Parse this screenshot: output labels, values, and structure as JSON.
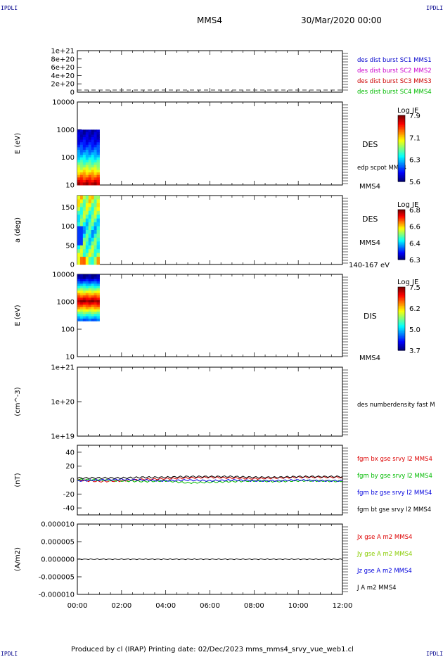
{
  "header": {
    "corner_left": "IPDLI",
    "corner_right": "IPDLI",
    "spacecraft": "MMS4",
    "date": "30/Mar/2020 00:00"
  },
  "footer": {
    "text": "Produced by cl (IRAP)   Printing date: 02/Dec/2023   mms_mms4_srvy_vue_web1.cl",
    "corner_left": "IPDLI",
    "corner_right": "IPDLI"
  },
  "chart_data": [
    {
      "type": "line",
      "panel": 1,
      "yticks": [
        "1e+21",
        "8e+20",
        "6e+20",
        "4e+20",
        "2e+20",
        "0"
      ],
      "ylim": [
        0,
        1e+21
      ],
      "legend": [
        {
          "label": "des dist burst SC1 MMS1",
          "color": "#0000cc"
        },
        {
          "label": "des dist burst SC2 MMS2",
          "color": "#cc00cc"
        },
        {
          "label": "des dist burst SC3 MMS3",
          "color": "#cc0000"
        },
        {
          "label": "des dist burst SC4 MMS4",
          "color": "#00bb00"
        }
      ]
    },
    {
      "type": "heatmap",
      "panel": 2,
      "ylabel": "E (eV)",
      "yticks": [
        "10000",
        "1000",
        "100",
        "10"
      ],
      "ylog": true,
      "ylim": [
        10,
        10000
      ],
      "x_range": [
        "00:00",
        "01:00"
      ],
      "y_range": [
        10,
        1000
      ],
      "side_label": "DES",
      "side_note": "edp scpot MMS4",
      "sc_label": "MMS4",
      "colorbar": {
        "title": "Log JE",
        "ticks": [
          "7.9",
          "7.1",
          "6.3",
          "5.6"
        ]
      }
    },
    {
      "type": "heatmap",
      "panel": 3,
      "ylabel": "a (deg)",
      "yticks": [
        "150",
        "100",
        "50",
        "0"
      ],
      "ylim": [
        0,
        180
      ],
      "x_range": [
        "00:00",
        "01:00"
      ],
      "side_label": "DES",
      "side_note": "MMS4",
      "energy_range": "140-167 eV",
      "colorbar": {
        "title": "Log JE",
        "ticks": [
          "6.8",
          "6.6",
          "6.4",
          "6.3"
        ]
      }
    },
    {
      "type": "heatmap",
      "panel": 4,
      "ylabel": "E (eV)",
      "yticks": [
        "10000",
        "1000",
        "100",
        "10"
      ],
      "ylog": true,
      "ylim": [
        10,
        10000
      ],
      "x_range": [
        "00:00",
        "01:00"
      ],
      "y_range": [
        200,
        10000
      ],
      "side_label": "DIS",
      "sc_label": "MMS4",
      "colorbar": {
        "title": "Log JE",
        "ticks": [
          "7.5",
          "6.2",
          "5.0",
          "3.7"
        ]
      }
    },
    {
      "type": "line",
      "panel": 5,
      "ylabel": "(cm^-3)",
      "yticks": [
        "1e+21",
        "1e+20",
        "1e+19"
      ],
      "ylog": true,
      "ylim": [
        1e+19,
        1e+21
      ],
      "legend": [
        {
          "label": "des numberdensity fast M",
          "color": "#000000"
        }
      ]
    },
    {
      "type": "line",
      "panel": 6,
      "ylabel": "(nT)",
      "yticks": [
        "40",
        "20",
        "0",
        "-20",
        "-40"
      ],
      "ylim": [
        -50,
        50
      ],
      "series": [
        {
          "name": "fgm bx gse srvy l2 MMS4",
          "color": "#dd0000",
          "x": [
            "00:00",
            "01:00",
            "02:00",
            "03:00",
            "04:00",
            "05:00",
            "06:00",
            "07:00",
            "08:00",
            "09:00",
            "10:00",
            "11:00",
            "12:00"
          ],
          "values": [
            0,
            -2,
            -1,
            1,
            2,
            3,
            4,
            3,
            2,
            3,
            4,
            4,
            4
          ]
        },
        {
          "name": "fgm by gse srvy l2 MMS4",
          "color": "#00bb00",
          "x": [
            "00:00",
            "01:00",
            "02:00",
            "03:00",
            "04:00",
            "05:00",
            "06:00",
            "07:00",
            "08:00",
            "09:00",
            "10:00",
            "11:00",
            "12:00"
          ],
          "values": [
            1,
            0,
            -1,
            -2,
            -1,
            -4,
            -3,
            -2,
            -1,
            -2,
            -1,
            -1,
            -2
          ]
        },
        {
          "name": "fgm bz gse srvy l2 MMS4",
          "color": "#0000dd",
          "x": [
            "00:00",
            "01:00",
            "02:00",
            "03:00",
            "04:00",
            "05:00",
            "06:00",
            "07:00",
            "08:00",
            "09:00",
            "10:00",
            "11:00",
            "12:00"
          ],
          "values": [
            -1,
            0,
            1,
            0,
            -1,
            0,
            -1,
            0,
            -1,
            -1,
            0,
            -1,
            -1
          ]
        },
        {
          "name": "fgm bt gse srvy l2 MMS4",
          "color": "#000000",
          "x": [
            "00:00",
            "01:00",
            "02:00",
            "03:00",
            "04:00",
            "05:00",
            "06:00",
            "07:00",
            "08:00",
            "09:00",
            "10:00",
            "11:00",
            "12:00"
          ],
          "values": [
            3,
            3,
            3,
            4,
            4,
            5,
            5,
            5,
            4,
            4,
            5,
            5,
            5
          ]
        }
      ]
    },
    {
      "type": "line",
      "panel": 7,
      "ylabel": "(A/m2)",
      "yticks": [
        "0.000010",
        "0.000005",
        "0.000000",
        "-0.000005",
        "-0.000010"
      ],
      "ylim": [
        -1e-05,
        1e-05
      ],
      "series": [
        {
          "name": "Jx gse A m2 MMS4",
          "color": "#dd0000"
        },
        {
          "name": "Jy gse A m2 MMS4",
          "color": "#88cc00"
        },
        {
          "name": "Jz gse A m2 MMS4",
          "color": "#0000dd"
        },
        {
          "name": "J A m2 MMS4",
          "color": "#000000"
        }
      ]
    }
  ],
  "xaxis": {
    "ticks": [
      "00:00",
      "02:00",
      "04:00",
      "06:00",
      "08:00",
      "10:00",
      "12:00"
    ]
  }
}
